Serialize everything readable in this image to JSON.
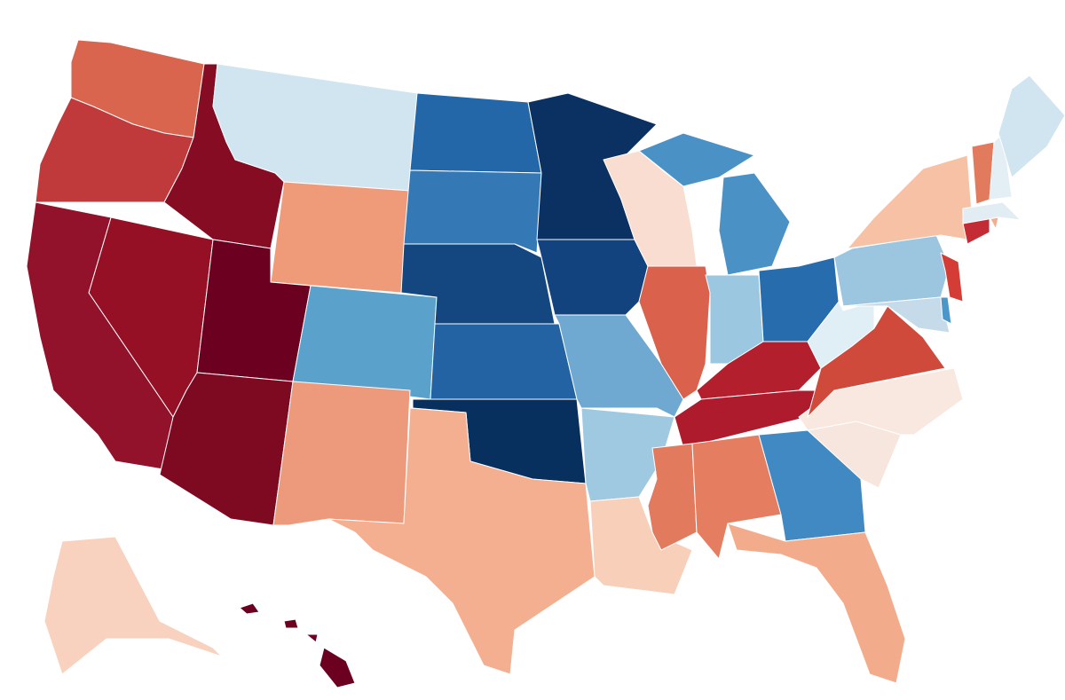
{
  "map": {
    "regions": [
      {
        "color": "#d9654f"
      },
      {
        "color": "#c0393b"
      },
      {
        "color": "#850c23"
      },
      {
        "color": "#d1e5f0"
      },
      {
        "color": "#ef9b7a"
      },
      {
        "color": "#951025"
      },
      {
        "color": "#92122b"
      },
      {
        "color": "#6b0020"
      },
      {
        "color": "#7e0a22"
      },
      {
        "color": "#5aa1cc"
      },
      {
        "color": "#ec9a7b"
      },
      {
        "color": "#2367a8"
      },
      {
        "color": "#3578b6"
      },
      {
        "color": "#14477f"
      },
      {
        "color": "#2363a4"
      },
      {
        "color": "#08305f"
      },
      {
        "color": "#f3af8f"
      },
      {
        "color": "#0b3062"
      },
      {
        "color": "#13437f"
      },
      {
        "color": "#6fa9d2"
      },
      {
        "color": "#9ec9e1"
      },
      {
        "color": "#f8d0ba"
      },
      {
        "color": "#f9ddd0"
      },
      {
        "color": "#da614b"
      },
      {
        "color": "#4a91c5"
      },
      {
        "color": "#9cc7e0"
      },
      {
        "color": "#276dad"
      },
      {
        "color": "#b31f2d"
      },
      {
        "color": "#ad1b2c"
      },
      {
        "color": "#e27a5e"
      },
      {
        "color": "#e57e61"
      },
      {
        "color": "#4189c3"
      },
      {
        "color": "#f3ac8b"
      },
      {
        "color": "#f7e6dd"
      },
      {
        "color": "#f8e8e0"
      },
      {
        "color": "#d04a3c"
      },
      {
        "color": "#e0eef5"
      },
      {
        "color": "#9cc6e0"
      },
      {
        "color": "#f6c1a4"
      },
      {
        "color": "#d43d36"
      },
      {
        "color": "#c6dbea"
      },
      {
        "color": "#4c97c9"
      },
      {
        "color": "#c32c34"
      },
      {
        "color": "#f3ad8e"
      },
      {
        "color": "#e2edf3"
      },
      {
        "color": "#e27a5d"
      },
      {
        "color": "#e3eef5"
      },
      {
        "color": "#d1e5f0"
      },
      {
        "color": "#f8d2be"
      },
      {
        "color": "#6b0020"
      }
    ]
  }
}
